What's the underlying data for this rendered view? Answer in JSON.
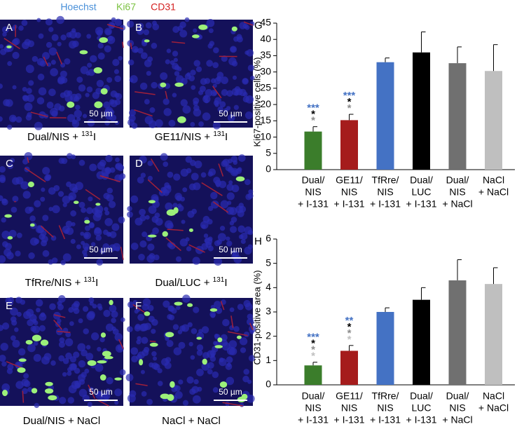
{
  "header": {
    "stains": [
      {
        "text": "Hoechst",
        "color": "#4a90d9"
      },
      {
        "text": "Ki67",
        "color": "#7cc242"
      },
      {
        "text": "CD31",
        "color": "#d42020"
      }
    ]
  },
  "panels": [
    {
      "letter": "A",
      "caption": {
        "text": "Dual/NIS + ",
        "sup": "131",
        "after": "I"
      },
      "scale": "50 µm"
    },
    {
      "letter": "B",
      "caption": {
        "text": "GE11/NIS + ",
        "sup": "131",
        "after": "I"
      },
      "scale": "50 µm"
    },
    {
      "letter": "C",
      "caption": {
        "text": "TfRre/NIS + ",
        "sup": "131",
        "after": "I"
      },
      "scale": "50 µm"
    },
    {
      "letter": "D",
      "caption": {
        "text": "Dual/LUC + ",
        "sup": "131",
        "after": "I"
      },
      "scale": "50 µm"
    },
    {
      "letter": "E",
      "caption": {
        "text": "Dual/NIS + NaCl"
      },
      "scale": "50 µm"
    },
    {
      "letter": "F",
      "caption": {
        "text": "NaCl + NaCl"
      },
      "scale": "50 µm"
    }
  ],
  "chart_data": [
    {
      "type": "bar",
      "letter": "G",
      "ylabel": "Ki67-positive cells (%)",
      "categories": [
        [
          "Dual/",
          "NIS",
          "+ I-131"
        ],
        [
          "GE11/",
          "NIS",
          "+ I-131"
        ],
        [
          "TfRre/",
          "NIS",
          "+ I-131"
        ],
        [
          "Dual/",
          "LUC",
          "+ I-131"
        ],
        [
          "Dual/",
          "NIS",
          "+ NaCl"
        ],
        [
          "NaCl",
          "+ NaCl"
        ]
      ],
      "values": [
        11.7,
        15.2,
        33,
        36,
        32.7,
        30.3
      ],
      "errors": [
        1.5,
        1.8,
        1.3,
        6.3,
        5,
        8.1
      ],
      "colors": [
        "#3b7d2b",
        "#a51c1c",
        "#4472c4",
        "#000000",
        "#707070",
        "#bfbfbf"
      ],
      "significance": [
        [
          {
            "text": "***",
            "color": "#4472c4"
          },
          {
            "text": "*",
            "color": "#000000"
          },
          {
            "text": "*",
            "color": "#8c8c8c"
          }
        ],
        [
          {
            "text": "***",
            "color": "#4472c4"
          },
          {
            "text": "*",
            "color": "#000000"
          },
          {
            "text": "*",
            "color": "#8c8c8c"
          }
        ],
        null,
        null,
        null,
        null
      ],
      "ylim": [
        0,
        45
      ],
      "yticks": [
        0,
        5,
        10,
        15,
        20,
        25,
        30,
        35,
        40,
        45
      ]
    },
    {
      "type": "bar",
      "letter": "H",
      "ylabel": "CD31-positive area (%)",
      "categories": [
        [
          "Dual/",
          "NIS",
          "+ I-131"
        ],
        [
          "GE11/",
          "NIS",
          "+ I-131"
        ],
        [
          "TfRre/",
          "NIS",
          "+ I-131"
        ],
        [
          "Dual/",
          "LUC",
          "+ I-131"
        ],
        [
          "Dual/",
          "NIS",
          "+ NaCl"
        ],
        [
          "NaCl",
          "+ NaCl"
        ]
      ],
      "values": [
        0.8,
        1.4,
        3.0,
        3.5,
        4.3,
        4.15
      ],
      "errors": [
        0.13,
        0.22,
        0.17,
        0.5,
        0.85,
        0.67
      ],
      "colors": [
        "#3b7d2b",
        "#a51c1c",
        "#4472c4",
        "#000000",
        "#707070",
        "#bfbfbf"
      ],
      "significance": [
        [
          {
            "text": "***",
            "color": "#4472c4"
          },
          {
            "text": "*",
            "color": "#000000"
          },
          {
            "text": "*",
            "color": "#8c8c8c"
          },
          {
            "text": "*",
            "color": "#bfbfbf"
          }
        ],
        [
          {
            "text": "**",
            "color": "#4472c4"
          },
          {
            "text": "*",
            "color": "#000000"
          },
          {
            "text": "*",
            "color": "#8c8c8c"
          },
          {
            "text": "*",
            "color": "#bfbfbf"
          }
        ],
        null,
        null,
        null,
        null
      ],
      "ylim": [
        0,
        6
      ],
      "yticks": [
        0,
        1,
        2,
        3,
        4,
        5,
        6
      ]
    }
  ]
}
